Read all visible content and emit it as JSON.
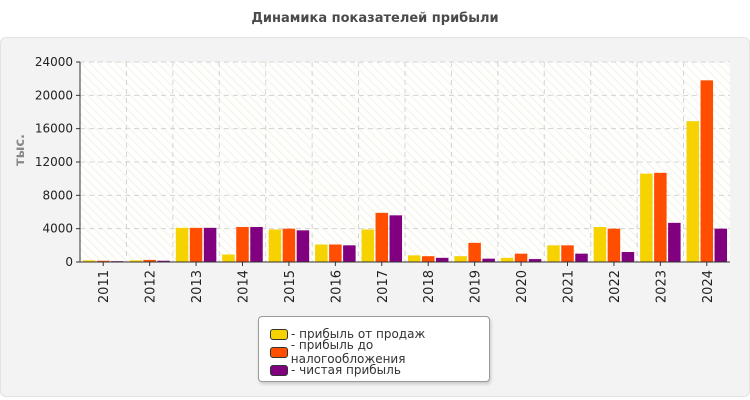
{
  "chart_data": {
    "type": "bar",
    "title": "Динамика показателей прибыли",
    "ylabel": "тыс.",
    "xlabel": "",
    "ylim": [
      0,
      24000
    ],
    "yticks": [
      0,
      4000,
      8000,
      12000,
      16000,
      20000,
      24000
    ],
    "grid": true,
    "legend_position": "bottom-center",
    "categories": [
      "2011",
      "2012",
      "2013",
      "2014",
      "2015",
      "2016",
      "2017",
      "2018",
      "2019",
      "2020",
      "2021",
      "2022",
      "2023",
      "2024"
    ],
    "series": [
      {
        "name": "- прибыль от продаж",
        "color": "#f5d200",
        "values": [
          200,
          200,
          4100,
          900,
          3900,
          2100,
          3900,
          800,
          700,
          500,
          2000,
          4200,
          10600,
          16900
        ]
      },
      {
        "name": "- прибыль до налогообложения",
        "color": "#ff4e00",
        "values": [
          150,
          250,
          4100,
          4200,
          4000,
          2100,
          5900,
          700,
          2300,
          1000,
          2000,
          4000,
          10700,
          21800
        ]
      },
      {
        "name": "- чистая прибыль",
        "color": "#800080",
        "values": [
          100,
          150,
          4100,
          4200,
          3800,
          2000,
          5600,
          500,
          400,
          350,
          1000,
          1200,
          4700,
          4000
        ]
      }
    ]
  }
}
